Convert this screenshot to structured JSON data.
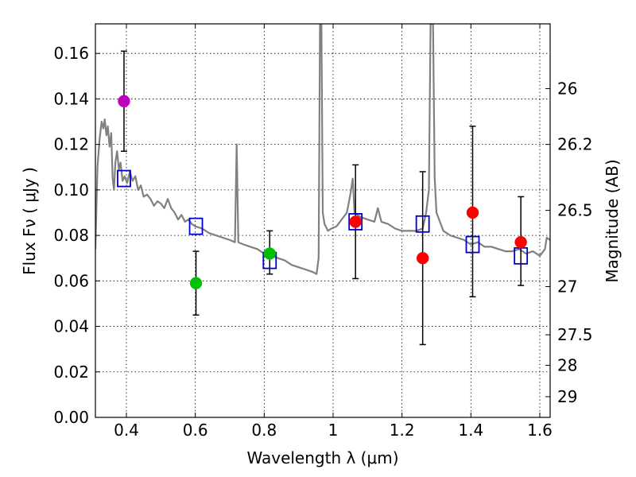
{
  "chart_data": {
    "type": "scatter",
    "title": "",
    "xlabel": "Wavelength  λ (μm)",
    "ylabel": "Flux  Fν  ( μJy )",
    "ylabel_right": "Magnitude (AB)",
    "xlim": [
      0.31,
      1.63
    ],
    "ylim": [
      0.0,
      0.173
    ],
    "grid": true,
    "x_ticks": [
      0.4,
      0.6,
      0.8,
      1.0,
      1.2,
      1.4,
      1.6
    ],
    "x_tick_labels": [
      "0.4",
      "0.6",
      "0.8",
      "1",
      "1.2",
      "1.4",
      "1.6"
    ],
    "y_ticks": [
      0.0,
      0.02,
      0.04,
      0.06,
      0.08,
      0.1,
      0.12,
      0.14,
      0.16
    ],
    "y_tick_labels": [
      "0.00",
      "0.02",
      "0.04",
      "0.06",
      "0.08",
      "0.10",
      "0.12",
      "0.14",
      "0.16"
    ],
    "right_ticks": [
      {
        "label": "26",
        "flux": 0.1445
      },
      {
        "label": "26.2",
        "flux": 0.12
      },
      {
        "label": "26.5",
        "flux": 0.091
      },
      {
        "label": "27",
        "flux": 0.0575
      },
      {
        "label": "27.5",
        "flux": 0.0363
      },
      {
        "label": "28",
        "flux": 0.0229
      },
      {
        "label": "29",
        "flux": 0.0091
      }
    ],
    "series": [
      {
        "name": "observed",
        "points": [
          {
            "x": 0.393,
            "y": 0.139,
            "err_low": 0.117,
            "err_high": 0.161,
            "color": "#bf00bf"
          },
          {
            "x": 0.602,
            "y": 0.059,
            "err_low": 0.045,
            "err_high": 0.073,
            "color": "#00c000"
          },
          {
            "x": 0.816,
            "y": 0.072,
            "err_low": 0.063,
            "err_high": 0.082,
            "color": "#00c000"
          },
          {
            "x": 1.065,
            "y": 0.086,
            "err_low": 0.061,
            "err_high": 0.111,
            "color": "#ff0000"
          },
          {
            "x": 1.26,
            "y": 0.07,
            "err_low": 0.032,
            "err_high": 0.108,
            "color": "#ff0000"
          },
          {
            "x": 1.405,
            "y": 0.09,
            "err_low": 0.053,
            "err_high": 0.128,
            "color": "#ff0000"
          },
          {
            "x": 1.545,
            "y": 0.077,
            "err_low": 0.058,
            "err_high": 0.097,
            "color": "#ff0000"
          }
        ]
      },
      {
        "name": "model_photometry",
        "color": "#0000cc",
        "points": [
          {
            "x": 0.393,
            "y": 0.105
          },
          {
            "x": 0.602,
            "y": 0.084
          },
          {
            "x": 0.816,
            "y": 0.069
          },
          {
            "x": 1.065,
            "y": 0.086
          },
          {
            "x": 1.26,
            "y": 0.085
          },
          {
            "x": 1.405,
            "y": 0.076
          },
          {
            "x": 1.545,
            "y": 0.071
          }
        ]
      },
      {
        "name": "model_sed",
        "color": "#808080",
        "points": [
          [
            0.31,
            0.074
          ],
          [
            0.316,
            0.11
          ],
          [
            0.322,
            0.122
          ],
          [
            0.328,
            0.13
          ],
          [
            0.333,
            0.127
          ],
          [
            0.337,
            0.131
          ],
          [
            0.342,
            0.124
          ],
          [
            0.346,
            0.128
          ],
          [
            0.351,
            0.119
          ],
          [
            0.356,
            0.125
          ],
          [
            0.36,
            0.105
          ],
          [
            0.364,
            0.1
          ],
          [
            0.368,
            0.112
          ],
          [
            0.373,
            0.117
          ],
          [
            0.378,
            0.109
          ],
          [
            0.383,
            0.112
          ],
          [
            0.389,
            0.104
          ],
          [
            0.395,
            0.106
          ],
          [
            0.402,
            0.103
          ],
          [
            0.41,
            0.108
          ],
          [
            0.418,
            0.104
          ],
          [
            0.426,
            0.106
          ],
          [
            0.434,
            0.1
          ],
          [
            0.442,
            0.102
          ],
          [
            0.45,
            0.097
          ],
          [
            0.46,
            0.098
          ],
          [
            0.47,
            0.096
          ],
          [
            0.48,
            0.093
          ],
          [
            0.49,
            0.095
          ],
          [
            0.5,
            0.094
          ],
          [
            0.51,
            0.092
          ],
          [
            0.52,
            0.096
          ],
          [
            0.53,
            0.092
          ],
          [
            0.54,
            0.09
          ],
          [
            0.55,
            0.087
          ],
          [
            0.56,
            0.089
          ],
          [
            0.57,
            0.086
          ],
          [
            0.58,
            0.087
          ],
          [
            0.59,
            0.085
          ],
          [
            0.6,
            0.084
          ],
          [
            0.62,
            0.083
          ],
          [
            0.64,
            0.081
          ],
          [
            0.66,
            0.08
          ],
          [
            0.68,
            0.079
          ],
          [
            0.7,
            0.078
          ],
          [
            0.715,
            0.077
          ],
          [
            0.72,
            0.12
          ],
          [
            0.725,
            0.077
          ],
          [
            0.74,
            0.076
          ],
          [
            0.76,
            0.075
          ],
          [
            0.78,
            0.074
          ],
          [
            0.8,
            0.072
          ],
          [
            0.82,
            0.071
          ],
          [
            0.84,
            0.07
          ],
          [
            0.86,
            0.069
          ],
          [
            0.88,
            0.067
          ],
          [
            0.9,
            0.066
          ],
          [
            0.92,
            0.065
          ],
          [
            0.94,
            0.064
          ],
          [
            0.952,
            0.063
          ],
          [
            0.958,
            0.07
          ],
          [
            0.962,
            0.173
          ],
          [
            0.966,
            0.173
          ],
          [
            0.97,
            0.09
          ],
          [
            0.975,
            0.085
          ],
          [
            0.985,
            0.082
          ],
          [
            0.995,
            0.083
          ],
          [
            1.01,
            0.084
          ],
          [
            1.025,
            0.087
          ],
          [
            1.04,
            0.09
          ],
          [
            1.05,
            0.098
          ],
          [
            1.057,
            0.105
          ],
          [
            1.062,
            0.09
          ],
          [
            1.08,
            0.088
          ],
          [
            1.1,
            0.087
          ],
          [
            1.12,
            0.086
          ],
          [
            1.13,
            0.092
          ],
          [
            1.14,
            0.086
          ],
          [
            1.16,
            0.085
          ],
          [
            1.18,
            0.083
          ],
          [
            1.2,
            0.082
          ],
          [
            1.22,
            0.082
          ],
          [
            1.24,
            0.082
          ],
          [
            1.26,
            0.083
          ],
          [
            1.27,
            0.09
          ],
          [
            1.278,
            0.1
          ],
          [
            1.283,
            0.173
          ],
          [
            1.29,
            0.173
          ],
          [
            1.295,
            0.105
          ],
          [
            1.3,
            0.09
          ],
          [
            1.32,
            0.082
          ],
          [
            1.34,
            0.08
          ],
          [
            1.36,
            0.079
          ],
          [
            1.38,
            0.078
          ],
          [
            1.4,
            0.076
          ],
          [
            1.42,
            0.077
          ],
          [
            1.44,
            0.075
          ],
          [
            1.46,
            0.075
          ],
          [
            1.48,
            0.074
          ],
          [
            1.5,
            0.073
          ],
          [
            1.52,
            0.073
          ],
          [
            1.54,
            0.074
          ],
          [
            1.56,
            0.072
          ],
          [
            1.58,
            0.073
          ],
          [
            1.6,
            0.071
          ],
          [
            1.615,
            0.074
          ],
          [
            1.62,
            0.079
          ],
          [
            1.63,
            0.078
          ]
        ]
      }
    ]
  }
}
